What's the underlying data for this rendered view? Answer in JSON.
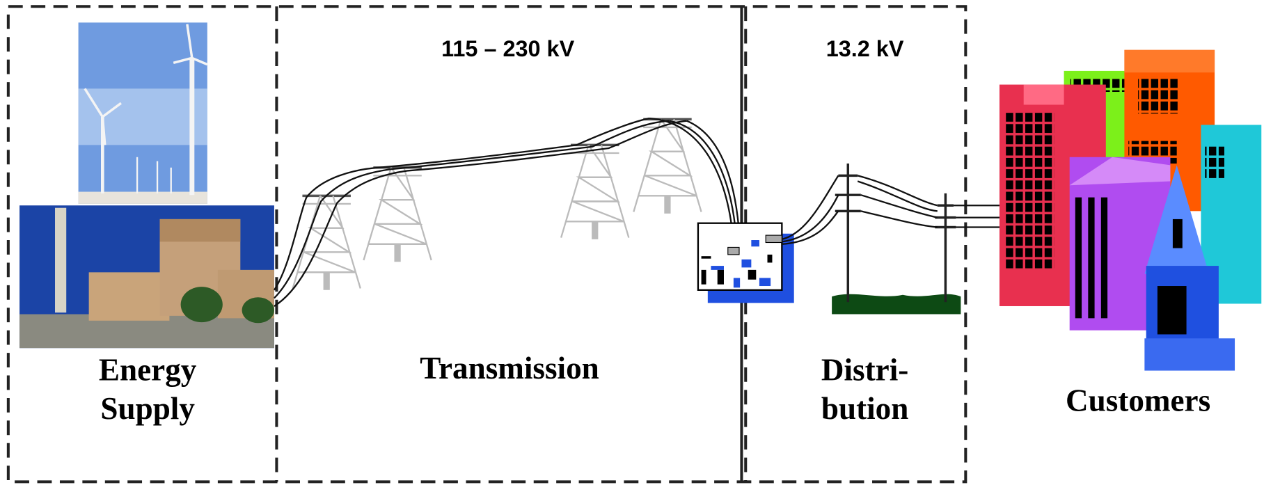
{
  "sections": [
    {
      "label": [
        "Energy",
        "Supply"
      ]
    },
    {
      "label": [
        "Transmission"
      ],
      "voltage": "115 – 230 kV"
    },
    {
      "label": [
        "Distri-",
        "bution"
      ],
      "voltage": "13.2 kV"
    },
    {
      "label": [
        "Customers"
      ]
    }
  ]
}
